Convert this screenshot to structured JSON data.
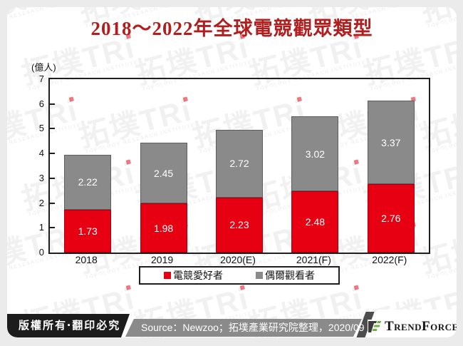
{
  "title": "2018～2022年全球電競觀眾類型",
  "chart_data": {
    "type": "bar",
    "stacked": true,
    "title": "2018～2022年全球電競觀眾類型",
    "unit_label": "(億人)",
    "categories": [
      "2018",
      "2019",
      "2020(E)",
      "2021(F)",
      "2022(F)"
    ],
    "series": [
      {
        "name": "電競愛好者",
        "color": "#e60012",
        "border": "#a80010",
        "values": [
          1.73,
          1.98,
          2.23,
          2.48,
          2.76
        ]
      },
      {
        "name": "偶爾觀看者",
        "color": "#8a8a8a",
        "border": "#5e5e5e",
        "values": [
          2.22,
          2.45,
          2.72,
          3.02,
          3.37
        ]
      }
    ],
    "totals": [
      3.95,
      4.43,
      4.95,
      5.5,
      6.13
    ],
    "ylim": [
      0,
      7
    ],
    "yticks": [
      "0",
      "1",
      "2",
      "3",
      "4",
      "5",
      "6",
      "7"
    ],
    "grid": false,
    "legend_position": "bottom-outside"
  },
  "footer": {
    "copyright": "版權所有‧翻印必究",
    "source": "Source：Newzoo；拓墣產業研究院整理，2020/09",
    "brand": "TrendForce"
  },
  "watermark": {
    "text": "拓墣TRi",
    "subtext": "TOPOLOGY RESEARCH INSTITUTE"
  },
  "colors": {
    "title_red": "#b01e1e",
    "bar_red": "#e60012",
    "bar_gray": "#8a8a8a",
    "footer_black": "#1c1c1c",
    "band_gray": "#8a8a8a",
    "logo_green": "#6db33f",
    "logo_dark": "#3c3c3c"
  }
}
